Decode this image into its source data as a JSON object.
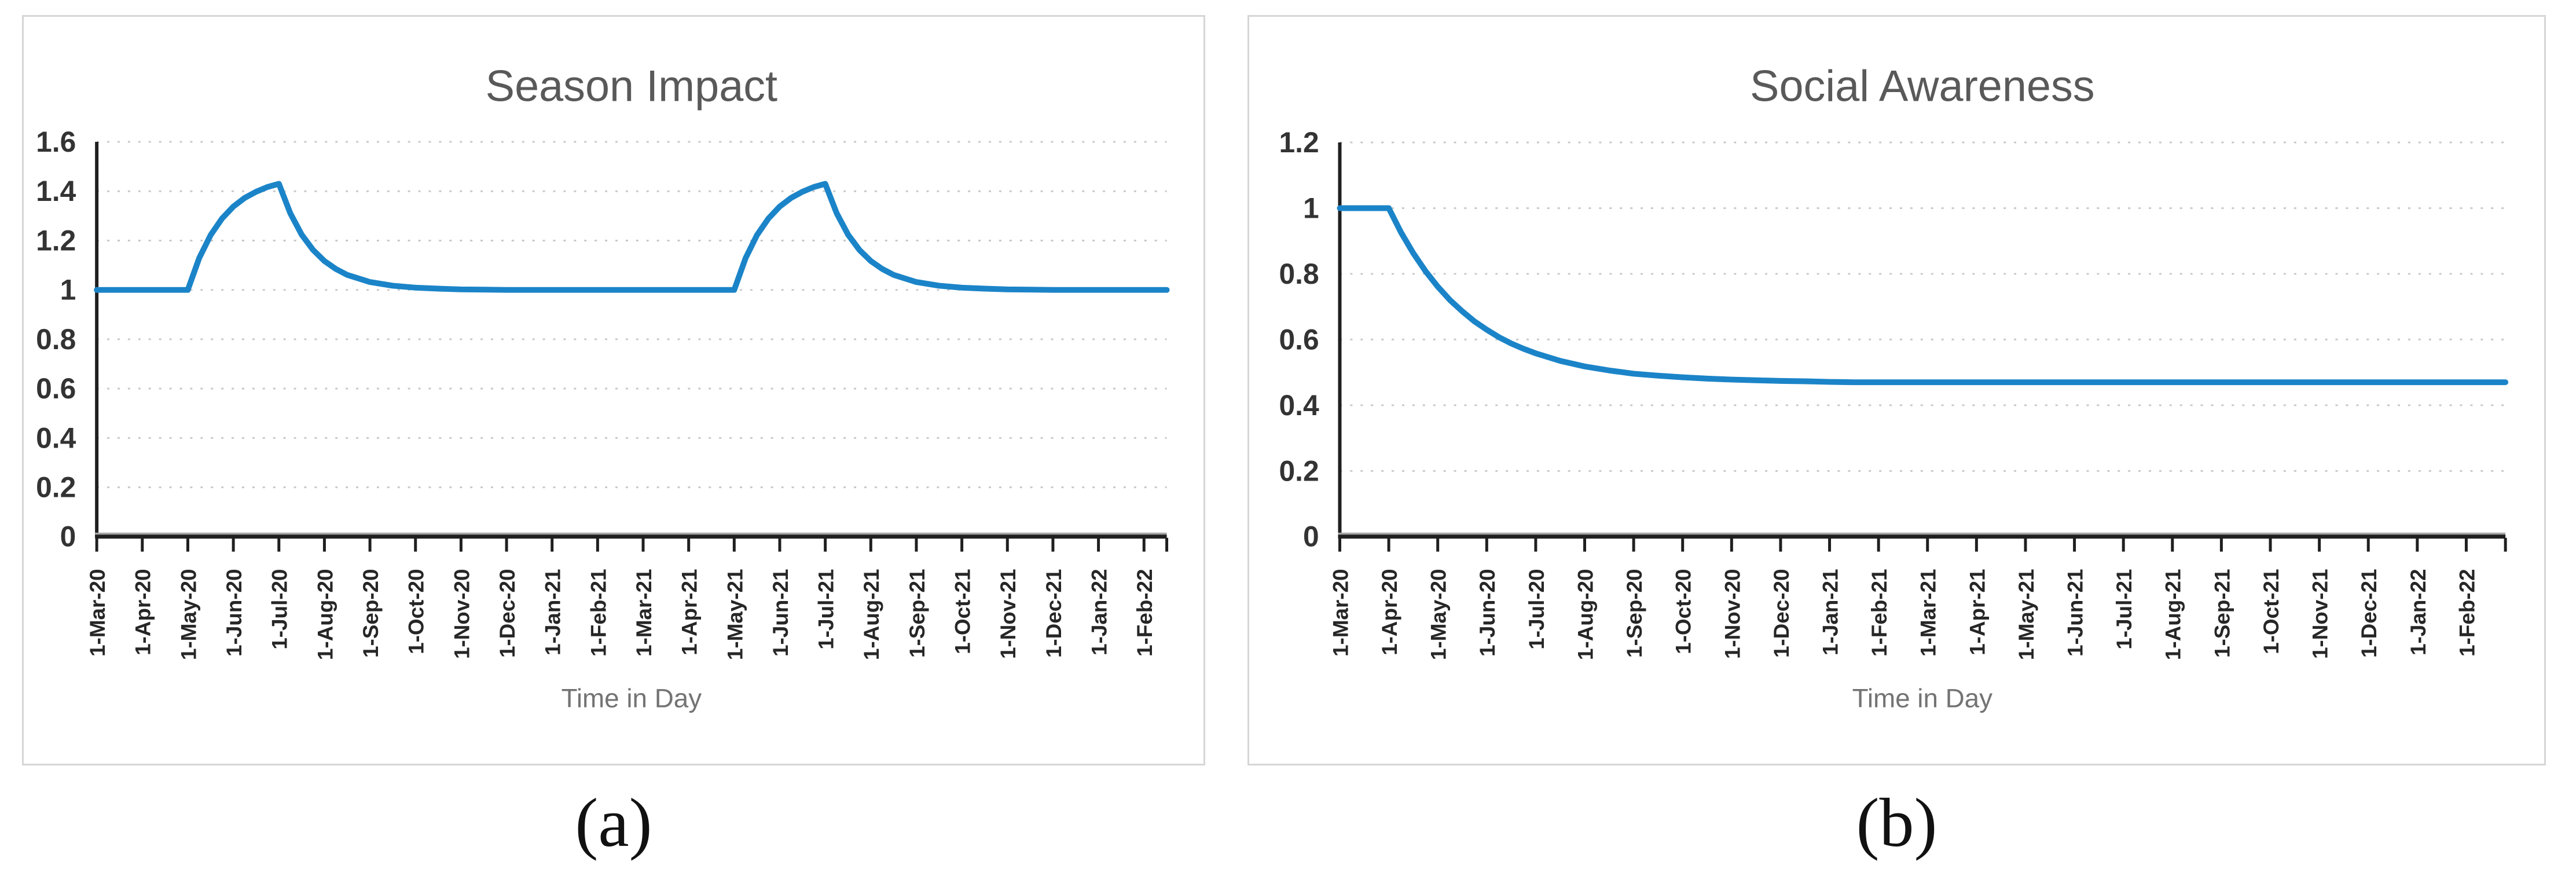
{
  "figure": {
    "panels": [
      {
        "caption": "(a)"
      },
      {
        "caption": "(b)"
      }
    ]
  },
  "colors": {
    "line_blue": "#1b84c8",
    "grid_gray": "#c9c9c9",
    "axis_black": "#1f1f1f",
    "axis_shadow_gray": "#a6a6a6",
    "panel_border": "#d6d6d6",
    "title_gray": "#595959",
    "axis_title_gray": "#737373"
  },
  "chart_data": [
    {
      "type": "line",
      "title": "Season Impact",
      "xlabel": "Time in Day",
      "ylabel": "",
      "legend": "none",
      "grid": "horizontal-dashed",
      "ylim": [
        0,
        1.6
      ],
      "yticks": [
        0,
        0.2,
        0.4,
        0.6,
        0.8,
        1,
        1.2,
        1.4,
        1.6
      ],
      "xlim_months": [
        0,
        23.5
      ],
      "x_tick_labels": [
        "1-Mar-20",
        "1-Apr-20",
        "1-May-20",
        "1-Jun-20",
        "1-Jul-20",
        "1-Aug-20",
        "1-Sep-20",
        "1-Oct-20",
        "1-Nov-20",
        "1-Dec-20",
        "1-Jan-21",
        "1-Feb-21",
        "1-Mar-21",
        "1-Apr-21",
        "1-May-21",
        "1-Jun-21",
        "1-Jul-21",
        "1-Aug-21",
        "1-Sep-21",
        "1-Oct-21",
        "1-Nov-21",
        "1-Dec-21",
        "1-Jan-22",
        "1-Feb-22"
      ],
      "line_color": "#1b84c8",
      "series": [
        {
          "name": "Season Impact",
          "x_months": [
            0,
            2,
            2.25,
            2.5,
            2.75,
            3,
            3.25,
            3.5,
            3.75,
            4,
            4.25,
            4.5,
            4.75,
            5,
            5.25,
            5.5,
            6,
            6.5,
            7,
            7.5,
            8,
            8.5,
            9,
            14,
            14.25,
            14.5,
            14.75,
            15,
            15.25,
            15.5,
            15.75,
            16,
            16.25,
            16.5,
            16.75,
            17,
            17.25,
            17.5,
            18,
            18.5,
            19,
            19.5,
            20,
            20.5,
            21,
            23.5
          ],
          "y": [
            1.0,
            1.0,
            1.129,
            1.222,
            1.289,
            1.338,
            1.373,
            1.398,
            1.417,
            1.43,
            1.311,
            1.224,
            1.162,
            1.117,
            1.085,
            1.061,
            1.032,
            1.017,
            1.009,
            1.005,
            1.002,
            1.001,
            1.0,
            1.0,
            1.129,
            1.222,
            1.289,
            1.338,
            1.373,
            1.398,
            1.417,
            1.43,
            1.311,
            1.224,
            1.162,
            1.117,
            1.085,
            1.061,
            1.032,
            1.017,
            1.009,
            1.005,
            1.002,
            1.001,
            1.0,
            1.0
          ]
        }
      ]
    },
    {
      "type": "line",
      "title": "Social Awareness",
      "xlabel": "Time in Day",
      "ylabel": "",
      "legend": "none",
      "grid": "horizontal-dashed",
      "ylim": [
        0,
        1.2
      ],
      "yticks": [
        0,
        0.2,
        0.4,
        0.6,
        0.8,
        1,
        1.2
      ],
      "xlim_months": [
        0,
        23.8
      ],
      "x_tick_labels": [
        "1-Mar-20",
        "1-Apr-20",
        "1-May-20",
        "1-Jun-20",
        "1-Jul-20",
        "1-Aug-20",
        "1-Sep-20",
        "1-Oct-20",
        "1-Nov-20",
        "1-Dec-20",
        "1-Jan-21",
        "1-Feb-21",
        "1-Mar-21",
        "1-Apr-21",
        "1-May-21",
        "1-Jun-21",
        "1-Jul-21",
        "1-Aug-21",
        "1-Sep-21",
        "1-Oct-21",
        "1-Nov-21",
        "1-Dec-21",
        "1-Jan-22",
        "1-Feb-22"
      ],
      "line_color": "#1b84c8",
      "series": [
        {
          "name": "Social Awareness",
          "x_months": [
            0,
            1,
            1.25,
            1.5,
            1.75,
            2,
            2.25,
            2.5,
            2.75,
            3,
            3.25,
            3.5,
            3.75,
            4,
            4.5,
            5,
            5.5,
            6,
            6.5,
            7,
            7.5,
            8,
            8.5,
            9,
            9.5,
            10,
            10.5,
            11,
            23.8
          ],
          "y": [
            1.0,
            1.0,
            0.926,
            0.863,
            0.808,
            0.761,
            0.72,
            0.686,
            0.655,
            0.63,
            0.607,
            0.588,
            0.572,
            0.558,
            0.535,
            0.518,
            0.506,
            0.496,
            0.49,
            0.485,
            0.481,
            0.478,
            0.476,
            0.474,
            0.473,
            0.471,
            0.47,
            0.47,
            0.47
          ]
        }
      ]
    }
  ]
}
